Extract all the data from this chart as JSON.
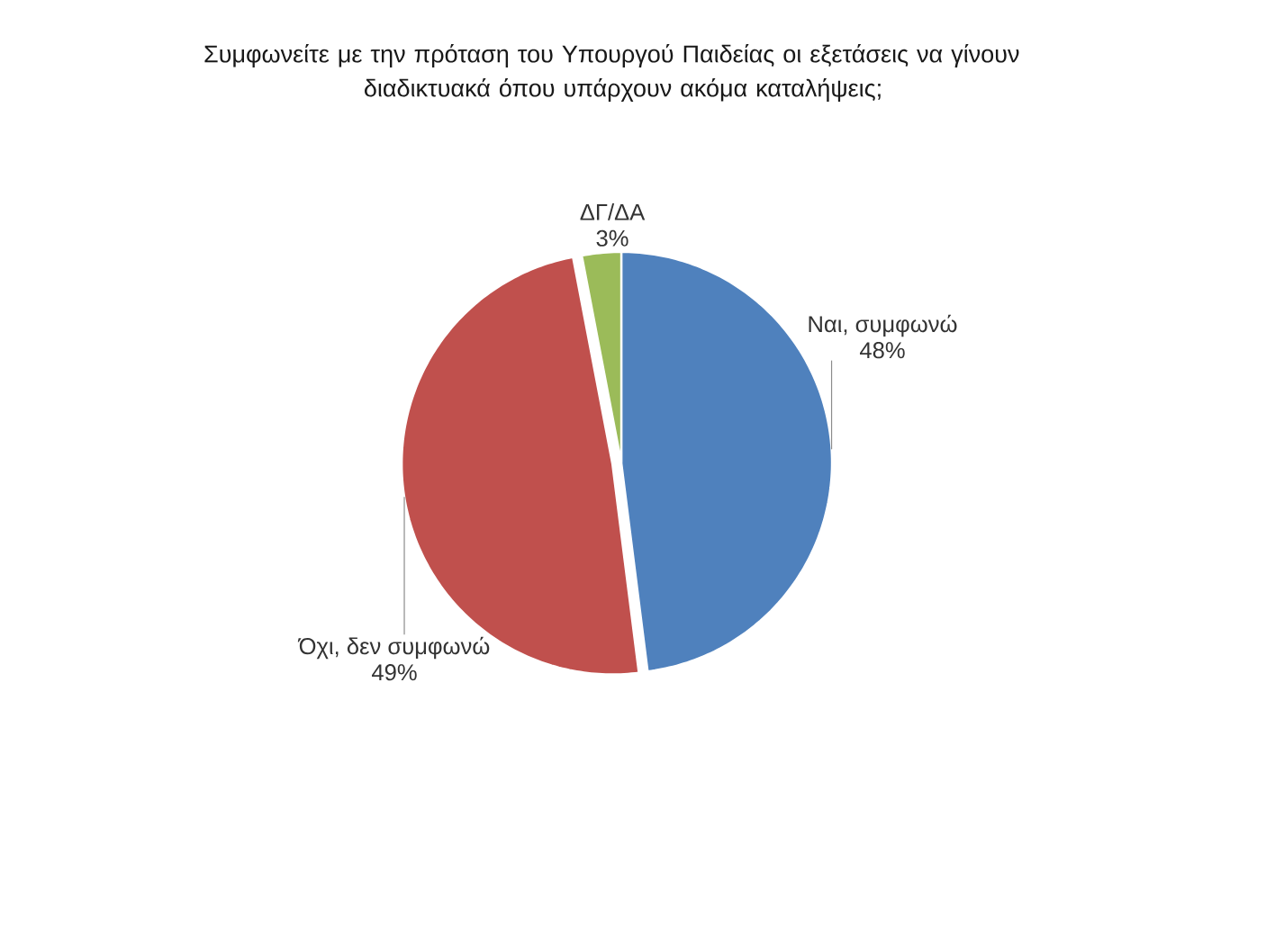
{
  "chart_data": {
    "type": "pie",
    "title": "Συμφωνείτε με την πρόταση του Υπουργού Παιδείας οι εξετάσεις να γίνουν διαδικτυακά όπου υπάρχουν ακόμα καταλήψεις;",
    "categories": [
      "Ναι, συμφωνώ",
      "Όχι, δεν συμφωνώ",
      "ΔΓ/ΔΑ"
    ],
    "values": [
      48,
      49,
      3
    ],
    "colors": [
      "#4f81bd",
      "#c0504d",
      "#9bbb59"
    ],
    "value_labels": [
      "48%",
      "49%",
      "3%"
    ]
  }
}
